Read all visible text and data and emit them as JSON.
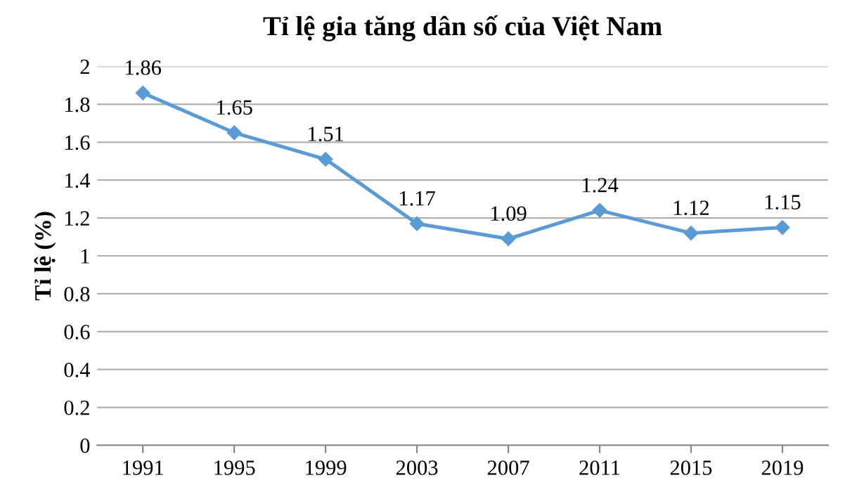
{
  "chart_data": {
    "type": "line",
    "title": "Tỉ lệ gia tăng dân số của Việt Nam",
    "ylabel": "Tỉ lệ (%)",
    "categories": [
      "1991",
      "1995",
      "1999",
      "2003",
      "2007",
      "2011",
      "2015",
      "2019"
    ],
    "series": [
      {
        "color": "#5b9bd5",
        "values": [
          1.86,
          1.65,
          1.51,
          1.17,
          1.09,
          1.24,
          1.12,
          1.15
        ]
      }
    ],
    "ylim": [
      0,
      2
    ],
    "yticks": [
      0,
      0.2,
      0.4,
      0.6,
      0.8,
      1,
      1.2,
      1.4,
      1.6,
      1.8,
      2
    ],
    "grid": "y",
    "marker": "diamond",
    "line_style": "solid",
    "data_labels": true,
    "legend": false
  }
}
